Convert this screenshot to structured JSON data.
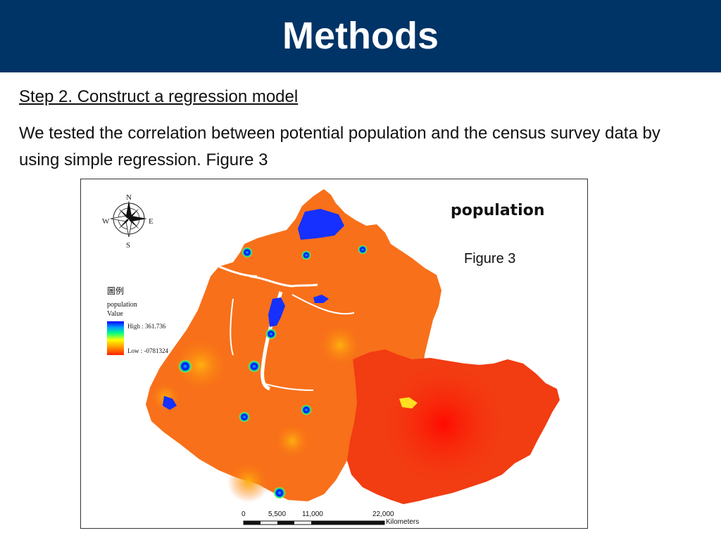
{
  "header": {
    "title": "Methods",
    "background": "#003366"
  },
  "step_heading": "Step 2. Construct a regression model",
  "body_text": "We tested the correlation between potential population and the census survey data by using simple regression. Figure 3",
  "figure": {
    "map_title": "population",
    "figure_label": "Figure 3",
    "compass": {
      "n": "N",
      "s": "S",
      "e": "E",
      "w": "W"
    },
    "legend": {
      "title": "圖例",
      "layer": "population",
      "field": "Value",
      "high": "High : 361.736",
      "low": "Low : -0781324"
    },
    "scale_bar": {
      "ticks": [
        "0",
        "5,500",
        "11,000",
        "22,000"
      ],
      "unit": "Kilometers"
    },
    "colors": {
      "high": "#0000ff",
      "mid": "#ffff00",
      "low": "#ff2000",
      "dominant": "#f96a10"
    }
  }
}
